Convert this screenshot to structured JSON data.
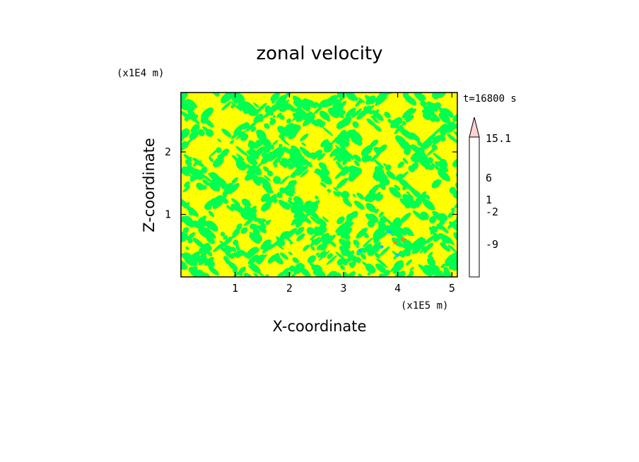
{
  "chart_data": {
    "type": "heatmap",
    "title": "zonal velocity",
    "xlabel": "X-coordinate",
    "ylabel": "Z-coordinate",
    "x_scale_note": "(x1E5 m)",
    "y_scale_note": "(x1E4 m)",
    "time_label": "t=16800 s",
    "xlim": [
      0.0,
      5.1
    ],
    "ylim": [
      0.0,
      2.95
    ],
    "x_ticks": [
      "1",
      "2",
      "3",
      "4",
      "5"
    ],
    "x_tick_values": [
      1,
      2,
      3,
      4,
      5
    ],
    "y_ticks": [
      "1",
      "2"
    ],
    "y_tick_values": [
      1,
      2
    ],
    "colorbar": {
      "labels": [
        "15.1",
        "6",
        "1",
        "-2",
        "-9"
      ],
      "colors": [
        "#ff00b4",
        "#c800b4",
        "#8c008c",
        "#0000b4",
        "#0032ff",
        "#00c8ff",
        "#00ff50",
        "#aaff00",
        "#ffff00",
        "#ffd200",
        "#ff8c00",
        "#ff3c00",
        "#e60000",
        "#ff6464",
        "#ffaaaa",
        "#ffd2d2"
      ],
      "extend": "max"
    },
    "dominant_colors": {
      "positive_small": "#ffff00",
      "near_zero": "#00ff50",
      "negative_small": "#00c8ff",
      "positive_medium": "#ff8c00"
    }
  }
}
